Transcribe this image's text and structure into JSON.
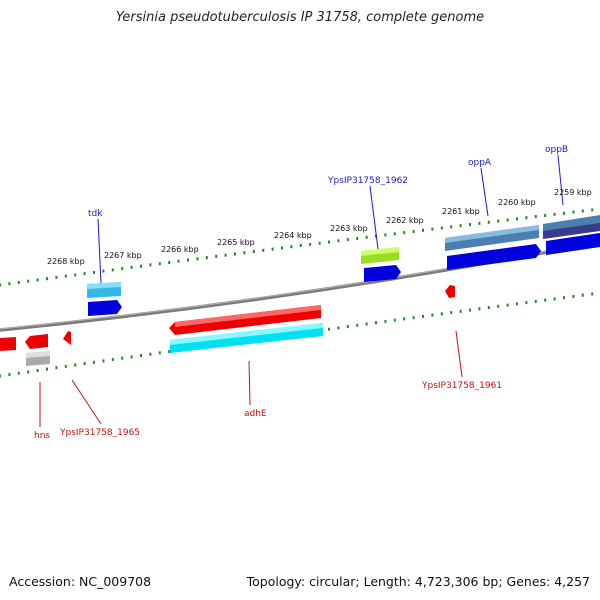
{
  "title": "Yersinia pseudotuberculosis IP 31758, complete genome",
  "footer": {
    "accession": "Accession: NC_009708",
    "summary": "Topology: circular; Length: 4,723,306 bp; Genes: 4,257"
  },
  "scale_labels": [
    "2268 kbp",
    "2267 kbp",
    "2266 kbp",
    "2265 kbp",
    "2264 kbp",
    "2263 kbp",
    "2262 kbp",
    "2261 kbp",
    "2260 kbp",
    "2259 kbp"
  ],
  "gene_labels_top": [
    "tdk",
    "YpsIP31758_1962",
    "oppA",
    "oppB"
  ],
  "gene_labels_bottom": [
    "hns",
    "YpsIP31758_1965",
    "adhE",
    "YpsIP31758_1961"
  ],
  "colors": {
    "forward_strand": "#0000dd",
    "reverse_strand": "#ee0000",
    "cds_cyan": "#00e0f0",
    "cds_lightblue": "#33aadd",
    "cds_steel": "#4a7fb0",
    "cds_lime": "#99dd22",
    "cds_grey": "#aaaaaa",
    "backbone": "#808080",
    "tick_green": "#228822",
    "label_blue": "#1a1acc",
    "label_red": "#cc1111"
  }
}
